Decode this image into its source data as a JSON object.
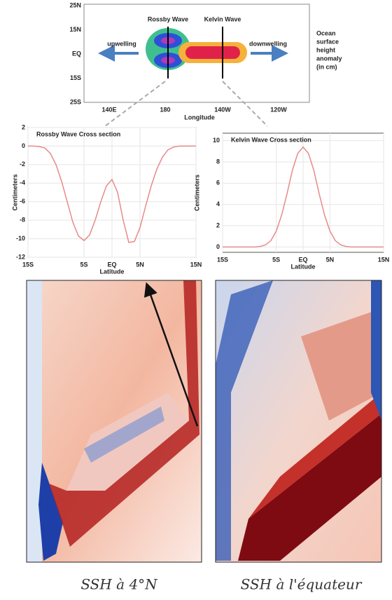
{
  "schematic": {
    "lat_labels": [
      "25N",
      "15N",
      "EQ",
      "15S",
      "25S"
    ],
    "lon_labels": [
      "140E",
      "180",
      "140W",
      "120W"
    ],
    "x_label": "Longitude",
    "rossby_label": "Rossby Wave",
    "kelvin_label": "Kelvin Wave",
    "left_arrow": "upwelling",
    "right_arrow": "downwelling",
    "legend_lines": [
      "Ocean",
      "surface",
      "height",
      "anomaly",
      "(in cm)"
    ]
  },
  "chart_data": [
    {
      "type": "line",
      "title": "Rossby Wave Cross section",
      "x_label": "Latitude",
      "y_label": "Centimeters",
      "x": [
        -15,
        -14,
        -13,
        -12,
        -11,
        -10,
        -9,
        -8,
        -7,
        -6,
        -5,
        -4,
        -3,
        -2,
        -1,
        0,
        1,
        2,
        3,
        4,
        5,
        6,
        7,
        8,
        9,
        10,
        11,
        12,
        13,
        14,
        15
      ],
      "values": [
        0,
        0,
        -0.05,
        -0.2,
        -0.8,
        -2,
        -3.8,
        -6,
        -8.2,
        -9.7,
        -10.2,
        -9.6,
        -8,
        -6,
        -4.3,
        -3.6,
        -5,
        -8,
        -10.4,
        -10.3,
        -8.8,
        -6.5,
        -4.3,
        -2.5,
        -1.2,
        -0.4,
        -0.1,
        0,
        0,
        0,
        0
      ],
      "color": "#e88a8a",
      "xlim": [
        -15,
        15
      ],
      "xticks": [
        {
          "value": -15,
          "label": "15S"
        },
        {
          "value": -5,
          "label": "5S"
        },
        {
          "value": 0,
          "label": "EQ"
        },
        {
          "value": 5,
          "label": "5N"
        },
        {
          "value": 15,
          "label": "15N"
        }
      ],
      "ylim": [
        -12,
        2
      ],
      "yticks": [
        2,
        0,
        -2,
        -4,
        -6,
        -8,
        -10,
        -12
      ],
      "grid": true
    },
    {
      "type": "line",
      "title": "Kelvin Wave Cross section",
      "x_label": "Latitude",
      "y_label": "Centimeters",
      "x": [
        -15,
        -14,
        -13,
        -12,
        -11,
        -10,
        -9,
        -8,
        -7,
        -6,
        -5,
        -4,
        -3,
        -2,
        -1,
        0,
        1,
        2,
        3,
        4,
        5,
        6,
        7,
        8,
        9,
        10,
        11,
        12,
        13,
        14,
        15
      ],
      "values": [
        0,
        0,
        0,
        0,
        0,
        0,
        0,
        0.05,
        0.2,
        0.6,
        1.5,
        3,
        5,
        7.2,
        8.8,
        9.4,
        8.8,
        7.2,
        5,
        3,
        1.5,
        0.6,
        0.2,
        0.05,
        0,
        0,
        0,
        0,
        0,
        0,
        0
      ],
      "color": "#e88a8a",
      "xlim": [
        -15,
        15
      ],
      "xticks": [
        {
          "value": -15,
          "label": "15S"
        },
        {
          "value": -5,
          "label": "5S"
        },
        {
          "value": 0,
          "label": "EQ"
        },
        {
          "value": 5,
          "label": "5N"
        },
        {
          "value": 15,
          "label": "15N"
        }
      ],
      "ylim": [
        -0.5,
        10.7
      ],
      "yticks": [
        0,
        2,
        4,
        6,
        8,
        10
      ],
      "grid": true
    }
  ],
  "panels": [
    {
      "caption": "SSH à 4°N"
    },
    {
      "caption": "SSH à l'équateur"
    }
  ]
}
